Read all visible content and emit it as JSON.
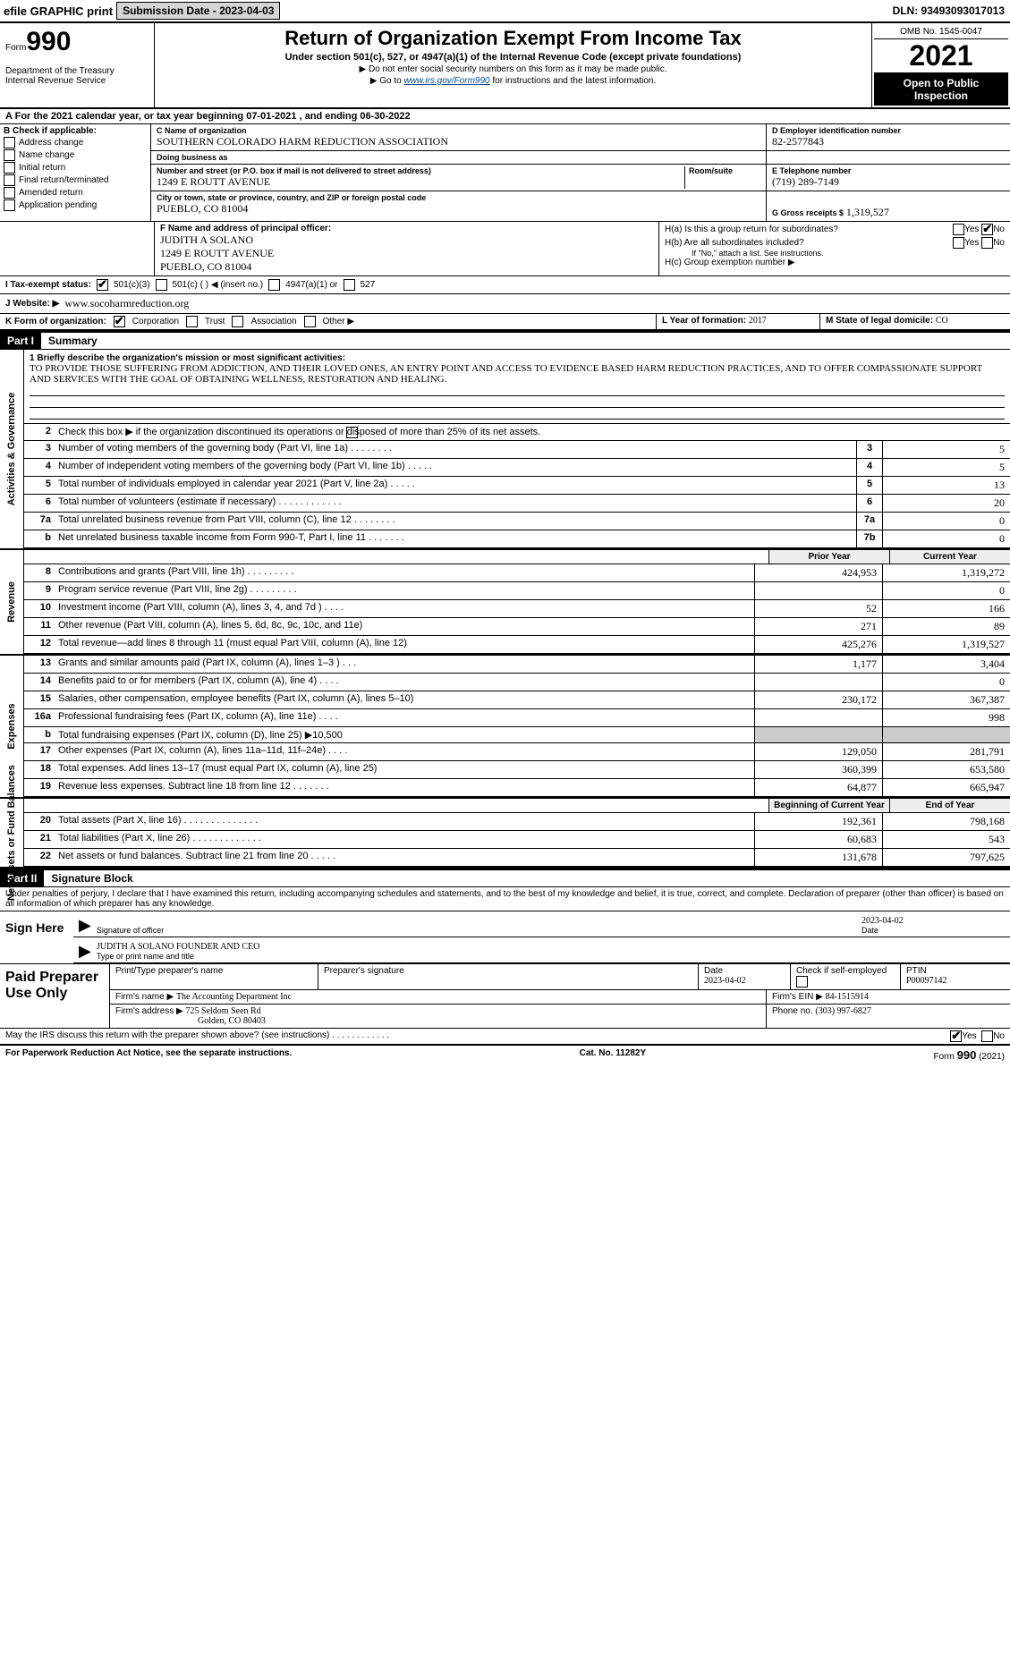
{
  "topbar": {
    "efile": "efile GRAPHIC print",
    "sub_label": "Submission Date - 2023-04-03",
    "dln": "DLN: 93493093017013"
  },
  "header": {
    "form_prefix": "Form",
    "form_number": "990",
    "dept1": "Department of the Treasury",
    "dept2": "Internal Revenue Service",
    "title": "Return of Organization Exempt From Income Tax",
    "subtitle": "Under section 501(c), 527, or 4947(a)(1) of the Internal Revenue Code (except private foundations)",
    "note1": "▶ Do not enter social security numbers on this form as it may be made public.",
    "note2_pre": "▶ Go to ",
    "note2_link": "www.irs.gov/Form990",
    "note2_post": " for instructions and the latest information.",
    "omb": "OMB No. 1545-0047",
    "year": "2021",
    "open": "Open to Public Inspection"
  },
  "period": {
    "line": "For the 2021 calendar year, or tax year beginning 07-01-2021     , and ending 06-30-2022"
  },
  "boxB": {
    "hdr": "B Check if applicable:",
    "items": [
      "Address change",
      "Name change",
      "Initial return",
      "Final return/terminated",
      "Amended return",
      "Application pending"
    ]
  },
  "boxC": {
    "lbl_name": "C Name of organization",
    "name": "SOUTHERN COLORADO HARM REDUCTION ASSOCIATION",
    "lbl_dba": "Doing business as",
    "dba": "",
    "lbl_addr": "Number and street (or P.O. box if mail is not delivered to street address)",
    "addr": "1249 E ROUTT AVENUE",
    "lbl_room": "Room/suite",
    "room": "",
    "lbl_city": "City or town, state or province, country, and ZIP or foreign postal code",
    "city": "PUEBLO, CO  81004"
  },
  "boxD": {
    "lbl": "D Employer identification number",
    "val": "82-2577843"
  },
  "boxE": {
    "lbl": "E Telephone number",
    "val": "(719) 289-7149"
  },
  "boxG": {
    "lbl": "G Gross receipts $",
    "val": "1,319,527"
  },
  "boxF": {
    "lbl": "F Name and address of principal officer:",
    "name": "JUDITH A SOLANO",
    "addr1": "1249 E ROUTT AVENUE",
    "addr2": "PUEBLO, CO  81004"
  },
  "boxH": {
    "ha": "H(a)  Is this a group return for subordinates?",
    "hb": "H(b)  Are all subordinates included?",
    "hb_note": "If \"No,\" attach a list. See instructions.",
    "hc": "H(c)  Group exemption number ▶",
    "yes": "Yes",
    "no": "No"
  },
  "boxI": {
    "lbl": "I  Tax-exempt status:",
    "o1": "501(c)(3)",
    "o2": "501(c) (    ) ◀ (insert no.)",
    "o3": "4947(a)(1) or",
    "o4": "527"
  },
  "boxJ": {
    "lbl": "J Website: ▶",
    "val": "www.socoharmreduction.org"
  },
  "boxK": {
    "lbl": "K Form of organization:",
    "o1": "Corporation",
    "o2": "Trust",
    "o3": "Association",
    "o4": "Other ▶"
  },
  "boxL": {
    "lbl": "L Year of formation:",
    "val": "2017"
  },
  "boxM": {
    "lbl": "M State of legal domicile:",
    "val": "CO"
  },
  "parts": {
    "p1": "Part I",
    "p1t": "Summary",
    "p2": "Part II",
    "p2t": "Signature Block"
  },
  "summary": {
    "l1_lbl": "1  Briefly describe the organization's mission or most significant activities:",
    "l1_text": "TO PROVIDE THOSE SUFFERING FROM ADDICTION, AND THEIR LOVED ONES, AN ENTRY POINT AND ACCESS TO EVIDENCE BASED HARM REDUCTION PRACTICES, AND TO OFFER COMPASSIONATE SUPPORT AND SERVICES WITH THE GOAL OF OBTAINING WELLNESS, RESTORATION AND HEALING.",
    "l2": "Check this box ▶      if the organization discontinued its operations or disposed of more than 25% of its net assets.",
    "rows_ag": [
      {
        "n": "3",
        "d": "Number of voting members of the governing body (Part VI, line 1a)  .    .    .    .    .    .    .    .",
        "b": "3",
        "v": "5"
      },
      {
        "n": "4",
        "d": "Number of independent voting members of the governing body (Part VI, line 1b)  .    .    .    .    .",
        "b": "4",
        "v": "5"
      },
      {
        "n": "5",
        "d": "Total number of individuals employed in calendar year 2021 (Part V, line 2a)  .    .    .    .    .",
        "b": "5",
        "v": "13"
      },
      {
        "n": "6",
        "d": "Total number of volunteers (estimate if necessary)  .    .    .    .    .    .    .    .    .    .    .    .",
        "b": "6",
        "v": "20"
      },
      {
        "n": "7a",
        "d": "Total unrelated business revenue from Part VIII, column (C), line 12  .    .    .    .    .    .    .    .",
        "b": "7a",
        "v": "0"
      },
      {
        "n": "b",
        "d": "Net unrelated business taxable income from Form 990-T, Part I, line 11  .    .    .    .    .    .    .",
        "b": "7b",
        "v": "0"
      }
    ],
    "col_prior": "Prior Year",
    "col_current": "Current Year",
    "rev": [
      {
        "n": "8",
        "d": "Contributions and grants (Part VIII, line 1h)  .    .    .    .    .    .    .    .    .",
        "p": "424,953",
        "c": "1,319,272"
      },
      {
        "n": "9",
        "d": "Program service revenue (Part VIII, line 2g)  .    .    .    .    .    .    .    .    .",
        "p": "",
        "c": "0"
      },
      {
        "n": "10",
        "d": "Investment income (Part VIII, column (A), lines 3, 4, and 7d )  .    .    .    .",
        "p": "52",
        "c": "166"
      },
      {
        "n": "11",
        "d": "Other revenue (Part VIII, column (A), lines 5, 6d, 8c, 9c, 10c, and 11e)",
        "p": "271",
        "c": "89"
      },
      {
        "n": "12",
        "d": "Total revenue—add lines 8 through 11 (must equal Part VIII, column (A), line 12)",
        "p": "425,276",
        "c": "1,319,527"
      }
    ],
    "exp": [
      {
        "n": "13",
        "d": "Grants and similar amounts paid (Part IX, column (A), lines 1–3 )  .    .    .",
        "p": "1,177",
        "c": "3,404"
      },
      {
        "n": "14",
        "d": "Benefits paid to or for members (Part IX, column (A), line 4)  .    .    .    .",
        "p": "",
        "c": "0"
      },
      {
        "n": "15",
        "d": "Salaries, other compensation, employee benefits (Part IX, column (A), lines 5–10)",
        "p": "230,172",
        "c": "367,387"
      },
      {
        "n": "16a",
        "d": "Professional fundraising fees (Part IX, column (A), line 11e)  .    .    .    .",
        "p": "",
        "c": "998"
      },
      {
        "n": "b",
        "d": "Total fundraising expenses (Part IX, column (D), line 25) ▶10,500",
        "p": "__shade__",
        "c": "__shade__"
      },
      {
        "n": "17",
        "d": "Other expenses (Part IX, column (A), lines 11a–11d, 11f–24e)  .    .    .    .",
        "p": "129,050",
        "c": "281,791"
      },
      {
        "n": "18",
        "d": "Total expenses. Add lines 13–17 (must equal Part IX, column (A), line 25)",
        "p": "360,399",
        "c": "653,580"
      },
      {
        "n": "19",
        "d": "Revenue less expenses. Subtract line 18 from line 12  .    .    .    .    .    .    .",
        "p": "64,877",
        "c": "665,947"
      }
    ],
    "col_begin": "Beginning of Current Year",
    "col_end": "End of Year",
    "net": [
      {
        "n": "20",
        "d": "Total assets (Part X, line 16)  .    .    .    .    .    .    .    .    .    .    .    .    .    .",
        "p": "192,361",
        "c": "798,168"
      },
      {
        "n": "21",
        "d": "Total liabilities (Part X, line 26)  .    .    .    .    .    .    .    .    .    .    .    .    .",
        "p": "60,683",
        "c": "543"
      },
      {
        "n": "22",
        "d": "Net assets or fund balances. Subtract line 21 from line 20  .    .    .    .    .",
        "p": "131,678",
        "c": "797,625"
      }
    ],
    "side_ag": "Activities & Governance",
    "side_rev": "Revenue",
    "side_exp": "Expenses",
    "side_net": "Net Assets or Fund Balances"
  },
  "sig": {
    "para": "Under penalties of perjury, I declare that I have examined this return, including accompanying schedules and statements, and to the best of my knowledge and belief, it is true, correct, and complete. Declaration of preparer (other than officer) is based on all information of which preparer has any knowledge.",
    "sign_here": "Sign Here",
    "sig_officer": "Signature of officer",
    "date_lbl": "Date",
    "date_val": "2023-04-02",
    "name": "JUDITH A SOLANO  FOUNDER AND CEO",
    "name_lbl": "Type or print name and title"
  },
  "prep": {
    "title": "Paid Preparer Use Only",
    "h1": "Print/Type preparer's name",
    "h2": "Preparer's signature",
    "h3": "Date",
    "h3v": "2023-04-02",
    "h4": "Check        if self-employed",
    "h5": "PTIN",
    "h5v": "P00097142",
    "firm_lbl": "Firm's name      ▶",
    "firm": "The Accounting Department Inc",
    "ein_lbl": "Firm's EIN ▶",
    "ein": "84-1515914",
    "addr_lbl": "Firm's address ▶",
    "addr1": "725 Seldom Seen Rd",
    "addr2": "Golden, CO  80403",
    "phone_lbl": "Phone no.",
    "phone": "(303) 997-6827"
  },
  "footer": {
    "q": "May the IRS discuss this return with the preparer shown above? (see instructions)  .    .    .    .    .    .    .    .    .    .    .    .",
    "yes": "Yes",
    "no": "No",
    "pra": "For Paperwork Reduction Act Notice, see the separate instructions.",
    "cat": "Cat. No. 11282Y",
    "form": "Form 990 (2021)"
  }
}
